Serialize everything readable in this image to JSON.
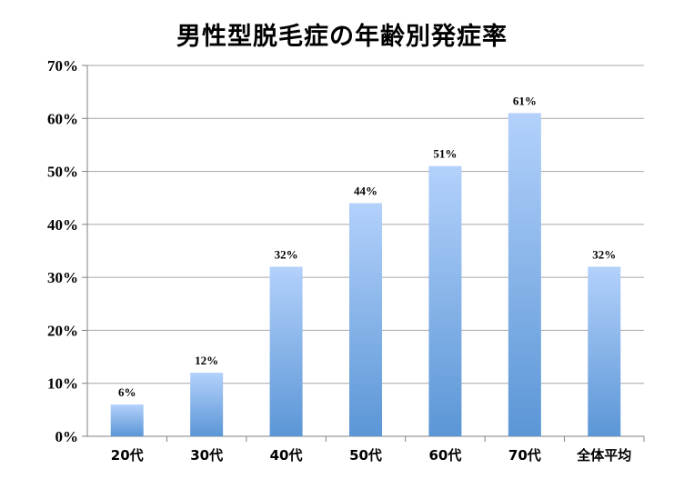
{
  "chart_data": {
    "type": "bar",
    "title": "男性型脱毛症の年齢別発症率",
    "categories": [
      "20代",
      "30代",
      "40代",
      "50代",
      "60代",
      "70代",
      "全体平均"
    ],
    "values": [
      6,
      12,
      32,
      44,
      51,
      61,
      32
    ],
    "value_labels": [
      "6%",
      "12%",
      "32%",
      "44%",
      "51%",
      "61%",
      "32%"
    ],
    "y_ticks": [
      "0%",
      "10%",
      "20%",
      "30%",
      "40%",
      "50%",
      "60%",
      "70%"
    ],
    "ylim": [
      0,
      70
    ],
    "grid": true,
    "legend": "none",
    "colors": {
      "bar_top": "#b3d1fb",
      "bar_bottom": "#5b96d6",
      "grid": "#a6a6a6",
      "axis": "#808080"
    }
  }
}
